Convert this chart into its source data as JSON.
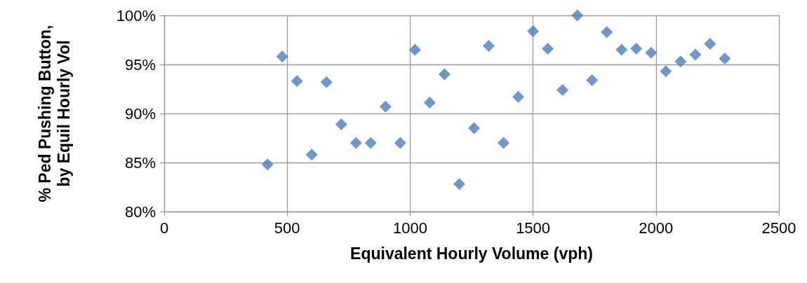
{
  "chart_data": {
    "type": "scatter",
    "xlabel": "Equivalent Hourly Volume (vph)",
    "ylabel": "% Ped Pushing Button, by Equil Hourly Vol",
    "x": [
      420,
      480,
      540,
      600,
      660,
      720,
      780,
      840,
      900,
      960,
      1020,
      1080,
      1140,
      1200,
      1260,
      1320,
      1380,
      1440,
      1500,
      1560,
      1620,
      1680,
      1740,
      1800,
      1860,
      1920,
      1980,
      2040,
      2100,
      2160,
      2220,
      2280
    ],
    "series": [
      {
        "color": "#4a7ebb",
        "values": [
          84.8,
          95.8,
          93.3,
          85.8,
          93.2,
          88.9,
          87.0,
          87.0,
          90.7,
          87.0,
          96.5,
          91.1,
          94.0,
          82.8,
          88.5,
          96.9,
          87.0,
          91.7,
          98.4,
          96.6,
          92.4,
          100.0,
          93.4,
          98.3,
          96.5,
          96.6,
          96.2,
          94.3,
          95.3,
          96.0,
          97.1,
          95.6
        ]
      }
    ],
    "xlim": [
      0,
      2500
    ],
    "xticks": [
      0,
      500,
      1000,
      1500,
      2000,
      2500
    ],
    "ylim": [
      80,
      100
    ],
    "yticks": [
      {
        "value": 80,
        "label": "80%"
      },
      {
        "value": 85,
        "label": "85%"
      },
      {
        "value": 90,
        "label": "90%"
      },
      {
        "value": 95,
        "label": "95%"
      },
      {
        "value": 100,
        "label": "100%"
      }
    ],
    "grid": true,
    "marker": "diamond"
  }
}
